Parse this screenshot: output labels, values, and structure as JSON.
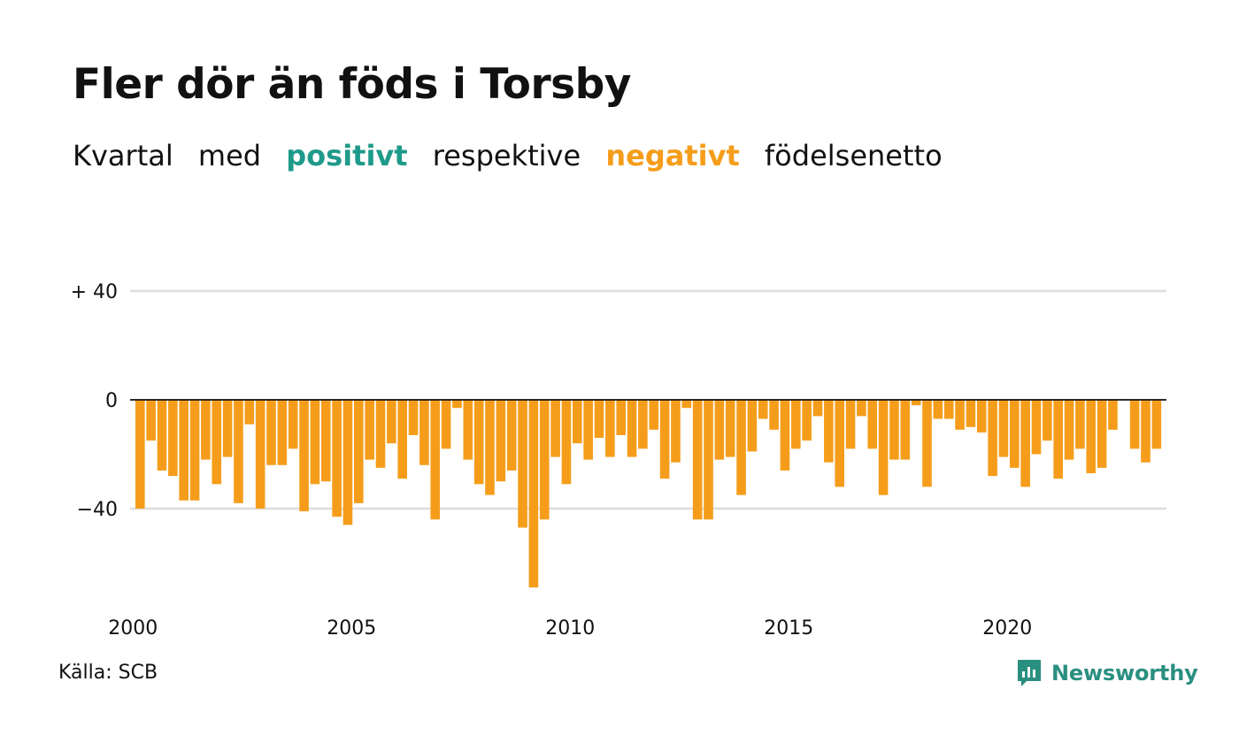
{
  "title": "Fler dör än föds i Torsby",
  "subtitle": {
    "w1": "Kvartal",
    "w2": "med",
    "positive": "positivt",
    "w3": "respektive",
    "negative": "negativt",
    "w4": "födelsenetto"
  },
  "source": "Källa: SCB",
  "brand": {
    "name": "Newsworthy",
    "icon": "newsworthy-logo-icon"
  },
  "colors": {
    "negative": "#f59d1b",
    "positive": "#1f9a8a",
    "grid": "#dddddd",
    "zero": "#111111"
  },
  "chart_data": {
    "type": "bar",
    "x_tick_labels": [
      "2000",
      "2005",
      "2010",
      "2015",
      "2020"
    ],
    "y_tick_labels": [
      "+ 40",
      "0",
      "−40"
    ],
    "y_ticks": [
      40,
      0,
      -40
    ],
    "ylim": [
      -75,
      42
    ],
    "grid": true,
    "x_start": 2000,
    "x_end": 2023.75,
    "series": [
      {
        "values": [
          -40,
          -15,
          -26,
          -28,
          -37,
          -37,
          -22,
          -31,
          -21,
          -38,
          -9,
          -40,
          -24,
          -24,
          -18,
          -41,
          -31,
          -30,
          -43,
          -46,
          -38,
          -22,
          -25,
          -16,
          -29,
          -13,
          -24,
          -44,
          -18,
          -3,
          -22,
          -31,
          -35,
          -30,
          -26,
          -47,
          -69,
          -44,
          -21,
          -31,
          -16,
          -22,
          -14,
          -21,
          -13,
          -21,
          -18,
          -11,
          -29,
          -23,
          -3,
          -44,
          -44,
          -22,
          -21,
          -35,
          -19,
          -7,
          -11,
          -26,
          -18,
          -15,
          -6,
          -23,
          -32,
          -18,
          -6,
          -18,
          -35,
          -22,
          -22,
          -2,
          -32,
          -7,
          -7,
          -11,
          -10,
          -12,
          -28,
          -21,
          -25,
          -32,
          -20,
          -15,
          -29,
          -22,
          -18,
          -27,
          -25,
          -11,
          0,
          -18,
          -23,
          -18
        ]
      }
    ]
  }
}
